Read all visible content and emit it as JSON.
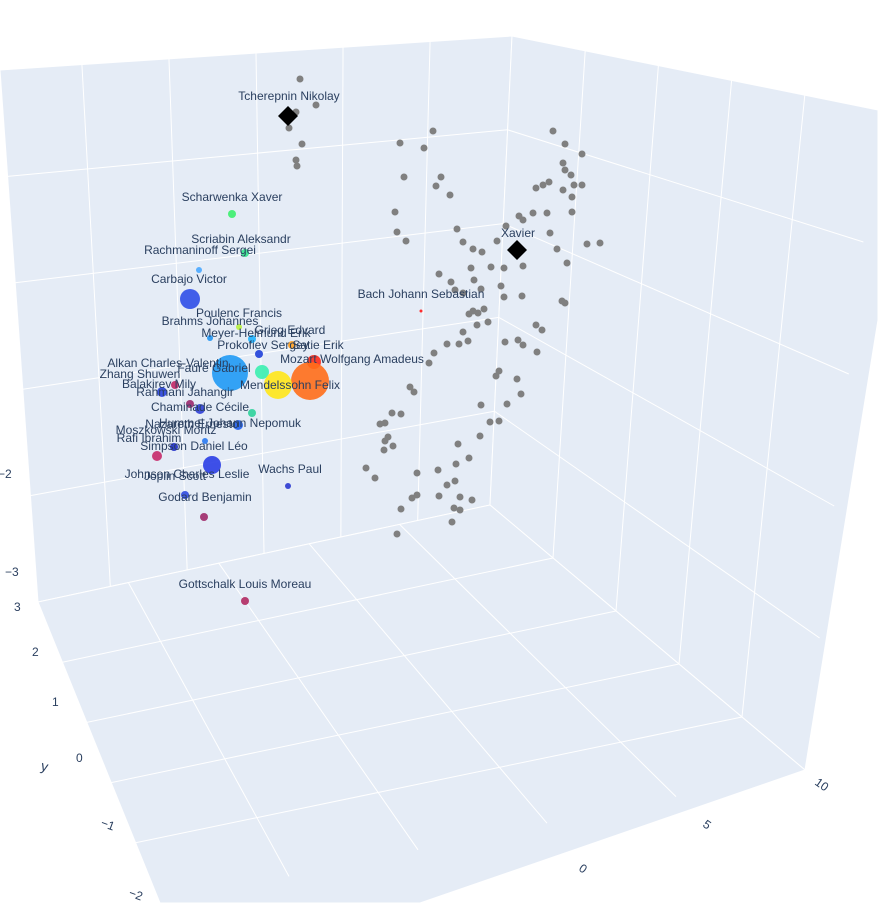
{
  "chart_data": {
    "type": "scatter",
    "projection": "3d",
    "xlabel": "",
    "ylabel": "y",
    "zlabel": "",
    "x_tick_labels": [
      "0",
      "5",
      "10"
    ],
    "y_tick_labels": [
      "3",
      "2",
      "1",
      "0",
      "−1",
      "−2"
    ],
    "z_tick_labels": [
      "−2",
      "−3"
    ],
    "colors": {
      "scene_background": "#e5ecf6",
      "grid": "#ffffff",
      "text": "#2a3f5f",
      "grey_points": "#808080",
      "marker_black": "#000000"
    },
    "labeled_points": [
      {
        "label": "Tcherepnin Nikolay",
        "color": "#000000",
        "marker": "diamond",
        "size": 20
      },
      {
        "label": "Xavier",
        "color": "#000000",
        "marker": "diamond",
        "size": 20
      },
      {
        "label": "Bach Johann Sebastian",
        "color": "#ff1a1a",
        "marker": "circle",
        "size": 2
      },
      {
        "label": "Scharwenka Xaver",
        "color": "#3cf06e",
        "marker": "circle",
        "size": 8
      },
      {
        "label": "Scriabin Aleksandr",
        "color": "#32e68c",
        "marker": "circle",
        "size": 8
      },
      {
        "label": "Rachmaninoff Sergei",
        "color": "#4aa8ff",
        "marker": "circle",
        "size": 6
      },
      {
        "label": "Carbajo Victor",
        "color": "#2f4fe8",
        "marker": "circle",
        "size": 20
      },
      {
        "label": "Poulenc Francis",
        "color": "#b8f23c",
        "marker": "circle",
        "size": 6
      },
      {
        "label": "Brahms Johannes",
        "color": "#2196f3",
        "marker": "circle",
        "size": 6
      },
      {
        "label": "Meyer-Helmund Erik",
        "color": "#1fb4ff",
        "marker": "circle",
        "size": 8
      },
      {
        "label": "Grieg Edvard",
        "color": "#ffa020",
        "marker": "circle",
        "size": 8
      },
      {
        "label": "Prokofiev Sergey",
        "color": "#1e3fd9",
        "marker": "circle",
        "size": 8
      },
      {
        "label": "Satie Erik",
        "color": "#ff2b1a",
        "marker": "circle",
        "size": 14
      },
      {
        "label": "Mozart Wolfgang Amadeus",
        "color": "#ff6e1a",
        "marker": "circle",
        "size": 38
      },
      {
        "label": "Alkan Charles-Valentin",
        "color": "#1f9af5",
        "marker": "circle",
        "size": 36
      },
      {
        "label": "Zhang Shuwen",
        "color": "#2a44e0",
        "marker": "circle",
        "size": 10
      },
      {
        "label": "Fauré Gabriel",
        "color": "#3aefb0",
        "marker": "circle",
        "size": 14
      },
      {
        "label": "Mendelssohn Felix",
        "color": "#ffe71a",
        "marker": "circle",
        "size": 28
      },
      {
        "label": "Balakirev Mily",
        "color": "#c22866",
        "marker": "circle",
        "size": 8
      },
      {
        "label": "Rahmani Jahangir",
        "color": "#2d3fd6",
        "marker": "circle",
        "size": 10
      },
      {
        "label": "Chaminade Cécile",
        "color": "#9a2a6e",
        "marker": "circle",
        "size": 8
      },
      {
        "label": "Hummel Johann Nepomuk",
        "color": "#1f5ff0",
        "marker": "circle",
        "size": 10
      },
      {
        "label": "Nazareth Ernesto",
        "color": "#2fd39c",
        "marker": "circle",
        "size": 8
      },
      {
        "label": "Moszkowski Moritz",
        "color": "#2a7af2",
        "marker": "circle",
        "size": 6
      },
      {
        "label": "Rafi Ibrahim",
        "color": "#c62a6a",
        "marker": "circle",
        "size": 10
      },
      {
        "label": "Simpson Daniel Léo",
        "color": "#1f2fc8",
        "marker": "circle",
        "size": 8
      },
      {
        "label": "Johnson Charles Leslie",
        "color": "#2a3ee6",
        "marker": "circle",
        "size": 18
      },
      {
        "label": "Joplin Scott",
        "color": "#2f4ae0",
        "marker": "circle",
        "size": 8
      },
      {
        "label": "Wachs Paul",
        "color": "#2a38d0",
        "marker": "circle",
        "size": 6
      },
      {
        "label": "Godard Benjamin",
        "color": "#9e2a6a",
        "marker": "circle",
        "size": 8
      },
      {
        "label": "Gottschalk Louis Moreau",
        "color": "#b02a62",
        "marker": "circle",
        "size": 8
      }
    ]
  }
}
